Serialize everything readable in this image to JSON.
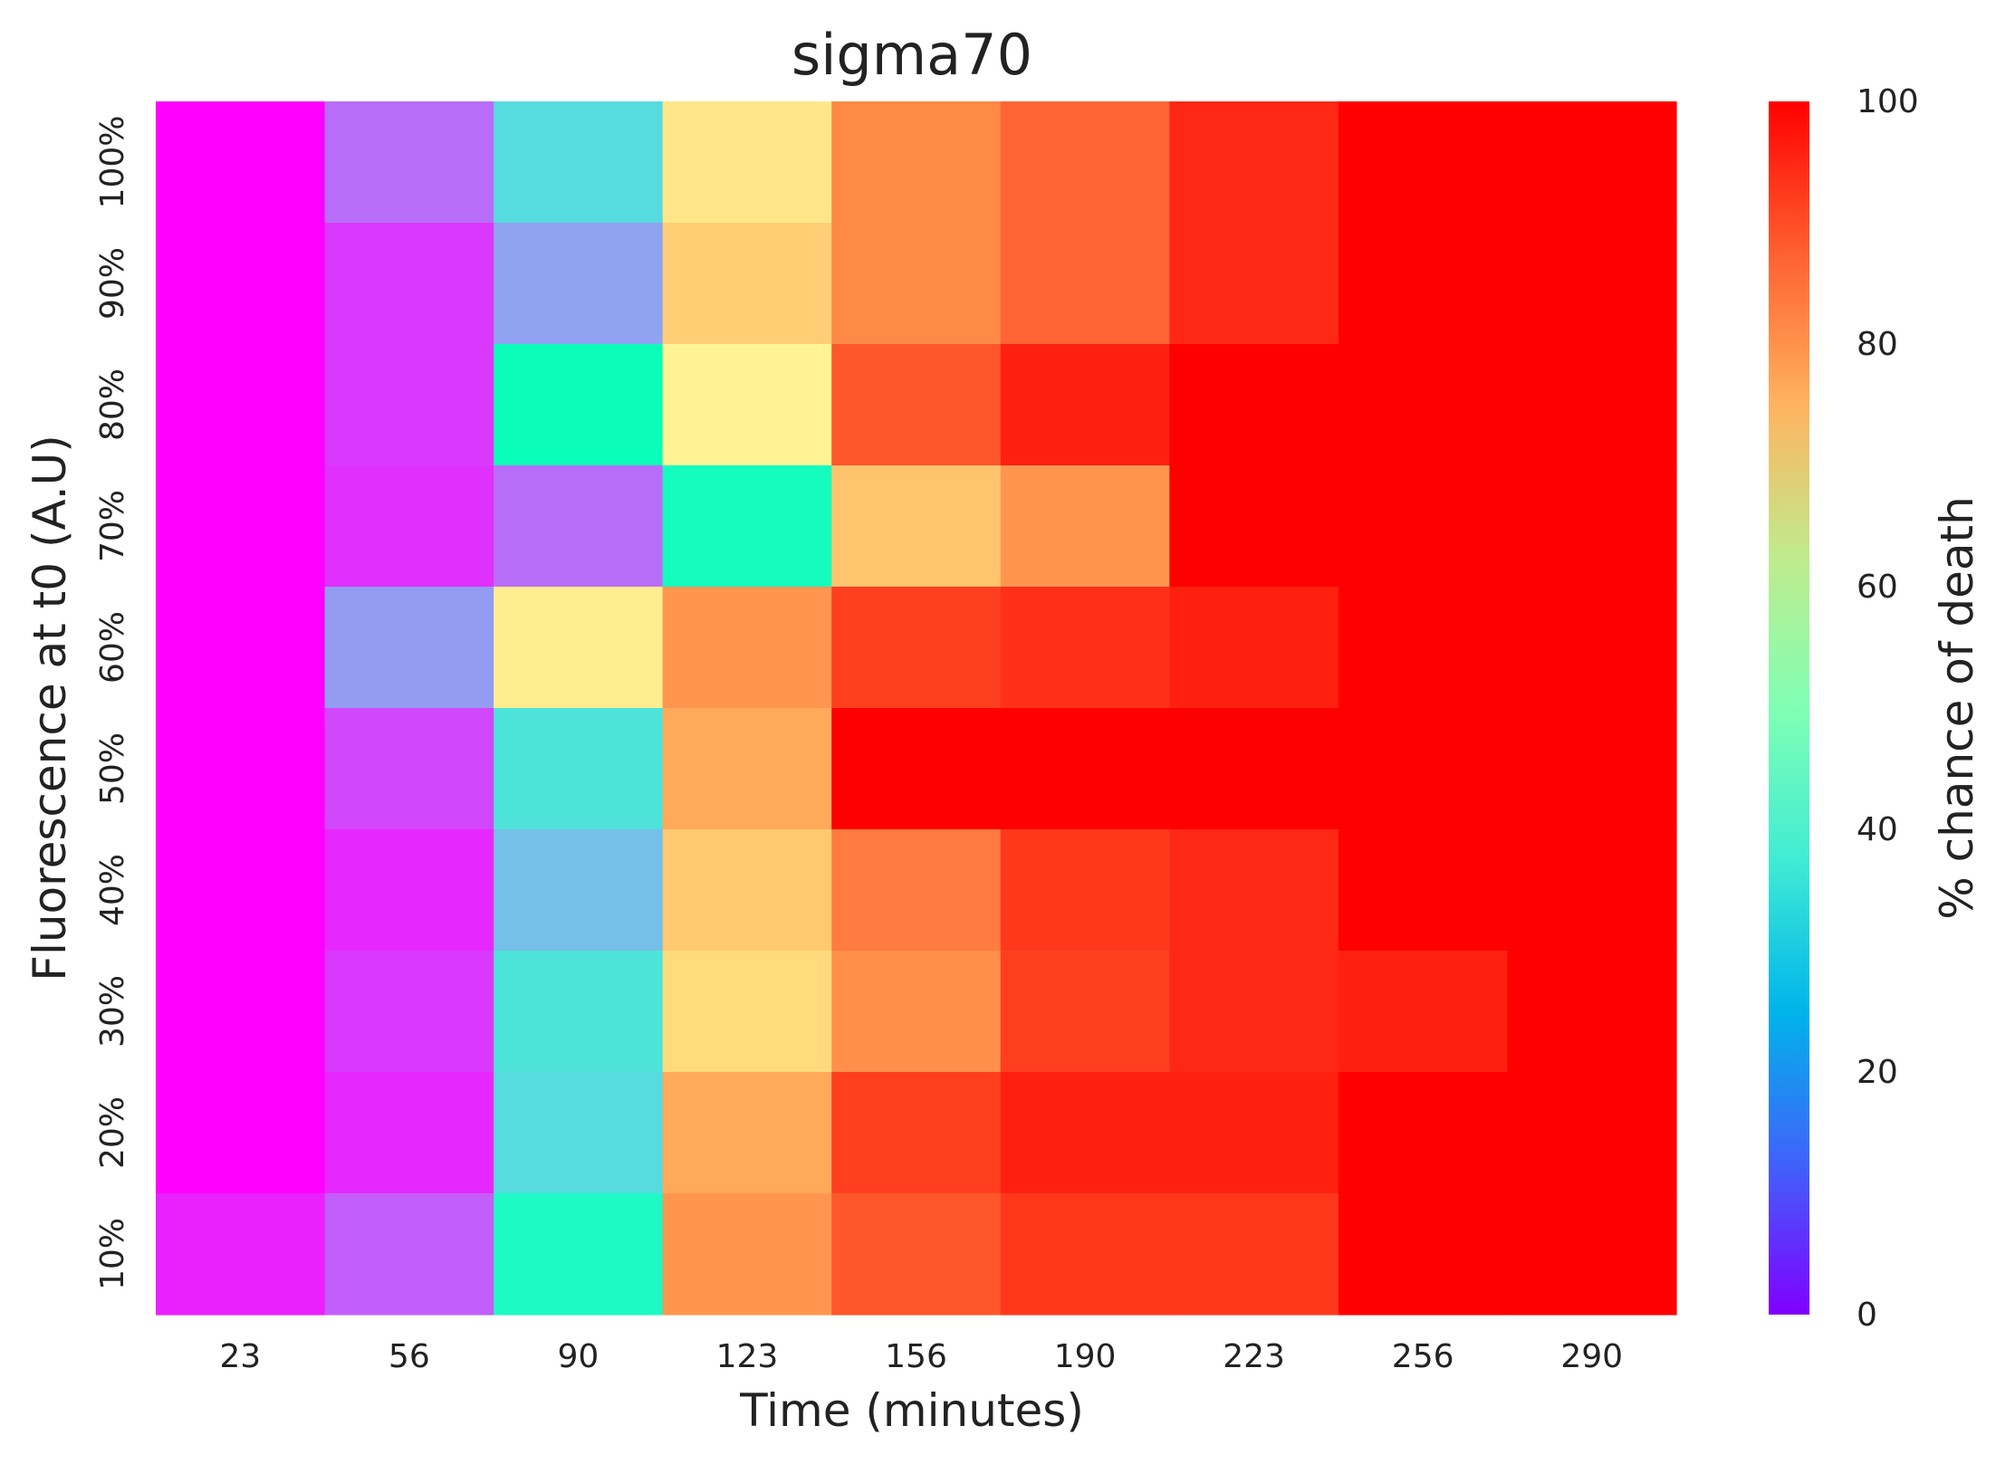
{
  "chart_data": {
    "type": "heatmap",
    "title": "sigma70",
    "xlabel": "Time (minutes)",
    "ylabel": "Fluorescence at t0 (A.U)",
    "x_categories": [
      "23",
      "56",
      "90",
      "123",
      "156",
      "190",
      "223",
      "256",
      "290"
    ],
    "y_categories": [
      "100%",
      "90%",
      "80%",
      "70%",
      "60%",
      "50%",
      "40%",
      "30%",
      "20%",
      "10%"
    ],
    "values": [
      [
        0,
        14,
        33,
        64,
        82,
        87,
        95,
        100,
        100
      ],
      [
        0,
        7,
        22,
        70,
        82,
        87,
        95,
        100,
        100
      ],
      [
        0,
        7,
        48,
        60,
        89,
        96,
        100,
        100,
        100
      ],
      [
        0,
        6,
        14,
        46,
        72,
        80,
        100,
        100,
        100
      ],
      [
        0,
        21,
        62,
        80,
        92,
        94,
        96,
        100,
        100
      ],
      [
        0,
        9,
        35,
        77,
        100,
        100,
        100,
        100,
        100
      ],
      [
        0,
        5,
        27,
        71,
        84,
        93,
        95,
        100,
        100
      ],
      [
        0,
        7,
        35,
        67,
        81,
        92,
        95,
        96,
        100
      ],
      [
        0,
        5,
        33,
        77,
        92,
        96,
        96,
        100,
        100
      ],
      [
        4,
        12,
        44,
        80,
        89,
        93,
        93,
        100,
        100
      ]
    ],
    "colorbar": {
      "label": "% chance of death",
      "range": [
        0,
        100
      ],
      "ticks": [
        "0",
        "20",
        "40",
        "60",
        "80",
        "100"
      ],
      "colormap": "rainbow"
    },
    "grid": false,
    "legend": "colorbar-right"
  }
}
